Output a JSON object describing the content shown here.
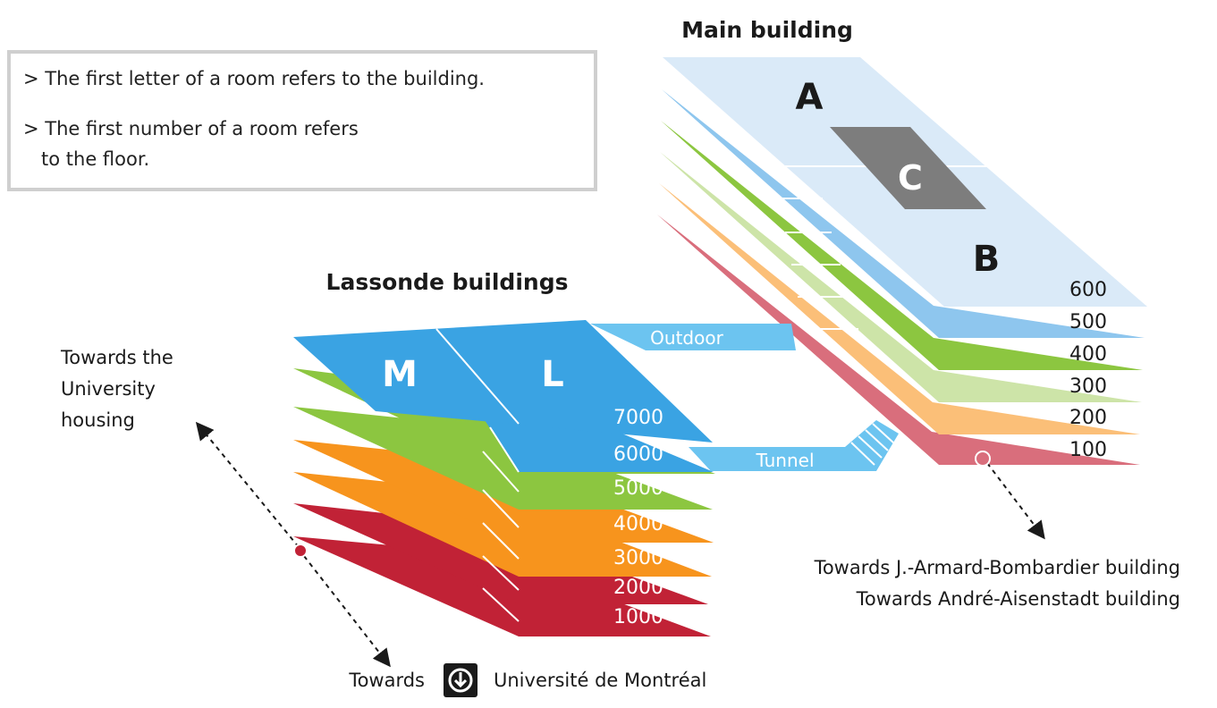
{
  "legend": {
    "line1": "> The first letter of a room refers to the building.",
    "line2a": "> The first number of a room refers",
    "line2b": "   to the floor."
  },
  "main_building": {
    "title": "Main building",
    "labels": {
      "a": "A",
      "b": "B",
      "c": "C"
    },
    "floors": [
      "600",
      "500",
      "400",
      "300",
      "200",
      "100"
    ]
  },
  "lassonde": {
    "title": "Lassonde buildings",
    "labels": {
      "m": "M",
      "l": "L"
    },
    "floors": [
      "7000",
      "6000",
      "5000",
      "4000",
      "3000",
      "2000",
      "1000"
    ]
  },
  "connectors": {
    "outdoor": "Outdoor",
    "tunnel": "Tunnel"
  },
  "directions": {
    "housing_l1": "Towards the",
    "housing_l2": "University",
    "housing_l3": "housing",
    "bombardier": "Towards J.-Armard-Bombardier building",
    "aisenstadt": "Towards André-Aisenstadt building",
    "metro_prefix": "Towards",
    "metro_station": "Université de Montréal"
  },
  "colors": {
    "light_blue": "#daeaf8",
    "sky_blue": "#8ec6ee",
    "blue": "#3aa3e3",
    "green": "#8cc640",
    "light_green": "#cde4a8",
    "orange": "#f7941d",
    "light_orange": "#fbbf78",
    "red": "#c12236",
    "rose": "#d96e7c",
    "gray": "#808080",
    "connector": "#6cc4f0"
  }
}
